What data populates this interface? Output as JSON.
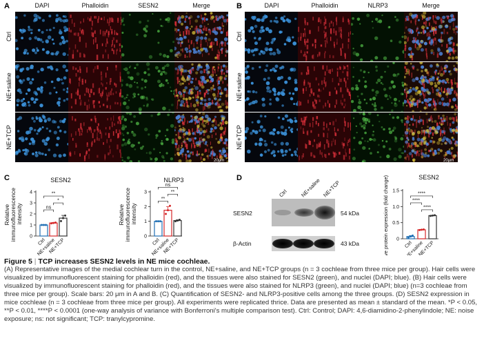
{
  "panels": {
    "A": {
      "label": "A",
      "columns": [
        "DAPI",
        "Phalloidin",
        "SESN2",
        "Merge"
      ],
      "rows": [
        "Ctrl",
        "NE+saline",
        "NE+TCP"
      ],
      "scale": "20μm"
    },
    "B": {
      "label": "B",
      "columns": [
        "DAPI",
        "Phalloidin",
        "NLRP3",
        "Merge"
      ],
      "rows": [
        "Ctrl",
        "NE+saline",
        "NE+TCP"
      ],
      "scale": "20μm"
    },
    "C": {
      "label": "C",
      "ylabel_lines": [
        "Relative",
        "immunofluorescence",
        "intensity"
      ],
      "groups": [
        "Ctrl",
        "NE+saline",
        "NE+TCP"
      ]
    },
    "D": {
      "label": "D",
      "lanes": [
        "Ctrl",
        "NE+saline",
        "NE+TCP"
      ],
      "bands": [
        {
          "name": "SESN2",
          "size": "54 kDa"
        },
        {
          "name": "β-Actin",
          "size": "43 kDa"
        }
      ]
    }
  },
  "chart_data": [
    {
      "type": "bar",
      "title": "SESN2",
      "categories": [
        "Ctrl",
        "NE+saline",
        "NE+TCP"
      ],
      "values": [
        1.0,
        1.18,
        1.62
      ],
      "points": [
        [
          1.0,
          1.0,
          1.0
        ],
        [
          1.15,
          1.18,
          1.22
        ],
        [
          1.35,
          1.62,
          1.85
        ]
      ],
      "errors": [
        0.02,
        0.04,
        0.25
      ],
      "ylim": [
        0,
        4
      ],
      "yticks": [
        0,
        1,
        2,
        3,
        4
      ],
      "colors": [
        "#1f6fb4",
        "#d62728",
        "#333333"
      ],
      "significance": [
        {
          "pair": [
            0,
            1
          ],
          "label": "ns"
        },
        {
          "pair": [
            1,
            2
          ],
          "label": "*"
        },
        {
          "pair": [
            0,
            2
          ],
          "label": "**"
        }
      ]
    },
    {
      "type": "bar",
      "title": "NLRP3",
      "categories": [
        "Ctrl",
        "NE+saline",
        "NE+TCP"
      ],
      "values": [
        1.0,
        1.75,
        1.05
      ],
      "points": [
        [
          1.0,
          1.0,
          1.0
        ],
        [
          1.5,
          1.75,
          2.05
        ],
        [
          1.0,
          1.05,
          1.1
        ]
      ],
      "errors": [
        0.02,
        0.25,
        0.05
      ],
      "ylim": [
        0,
        3
      ],
      "yticks": [
        0,
        1,
        2,
        3
      ],
      "colors": [
        "#1f6fb4",
        "#d62728",
        "#333333"
      ],
      "significance": [
        {
          "pair": [
            0,
            1
          ],
          "label": "**"
        },
        {
          "pair": [
            1,
            2
          ],
          "label": "**"
        },
        {
          "pair": [
            0,
            2
          ],
          "label": "ns"
        }
      ]
    },
    {
      "type": "bar",
      "title": "SESN2",
      "ylabel": "Relative protein expression (fold change)",
      "categories": [
        "Ctrl",
        "NE+saline",
        "NE+TCP"
      ],
      "values": [
        0.07,
        0.28,
        0.72
      ],
      "points": [
        [
          0.04,
          0.07,
          0.1
        ],
        [
          0.27,
          0.28,
          0.29
        ],
        [
          0.71,
          0.72,
          0.73
        ]
      ],
      "errors": [
        0.03,
        0.01,
        0.01
      ],
      "ylim": [
        0,
        1.5
      ],
      "yticks": [
        0.0,
        0.5,
        1.0,
        1.5
      ],
      "ytick_labels": [
        "0",
        "0.5",
        "1.0",
        "1.5"
      ],
      "colors": [
        "#1f6fb4",
        "#d62728",
        "#333333"
      ],
      "significance": [
        {
          "pair": [
            1,
            2
          ],
          "label": "****"
        },
        {
          "pair": [
            0,
            1
          ],
          "label": "****"
        },
        {
          "pair": [
            0,
            2
          ],
          "label": "****"
        }
      ]
    }
  ],
  "caption": {
    "fig_num": "Figure 5",
    "separator": " | ",
    "title": "TCP increases SESN2 levels in NE mice cochleae.",
    "body": "(A) Representative images of the medial cochlear turn in the control, NE+saline, and NE+TCP groups (n = 3 cochleae from three mice per group). Hair cells were visualized by immunofluorescent staining for phalloidin (red), and the tissues were also stained for SESN2 (green), and nuclei (DAPI; blue). (B) Hair cells were visualized by immunofluorescent staining for phalloidin (red), and the tissues were also stained for NLRP3 (green), and nuclei (DAPI; blue) (n=3 cochleae from three mice per group). Scale bars: 20 μm in A and B. (C) Quantification of SESN2- and NLRP3-positive cells among the three groups. (D) SESN2 expression in mice cochleae (n = 3 cochleae from three mice per group). All experiments were replicated thrice. Data are presented as mean ± standard of the mean. *P < 0.05, **P < 0.01, ****P < 0.0001 (one-way analysis of variance with Bonferroni's multiple comparison test). Ctrl: Control; DAPI: 4,6-diamidino-2-phenylindole; NE: noise exposure; ns: not significant; TCP: tranylcypromine."
  }
}
